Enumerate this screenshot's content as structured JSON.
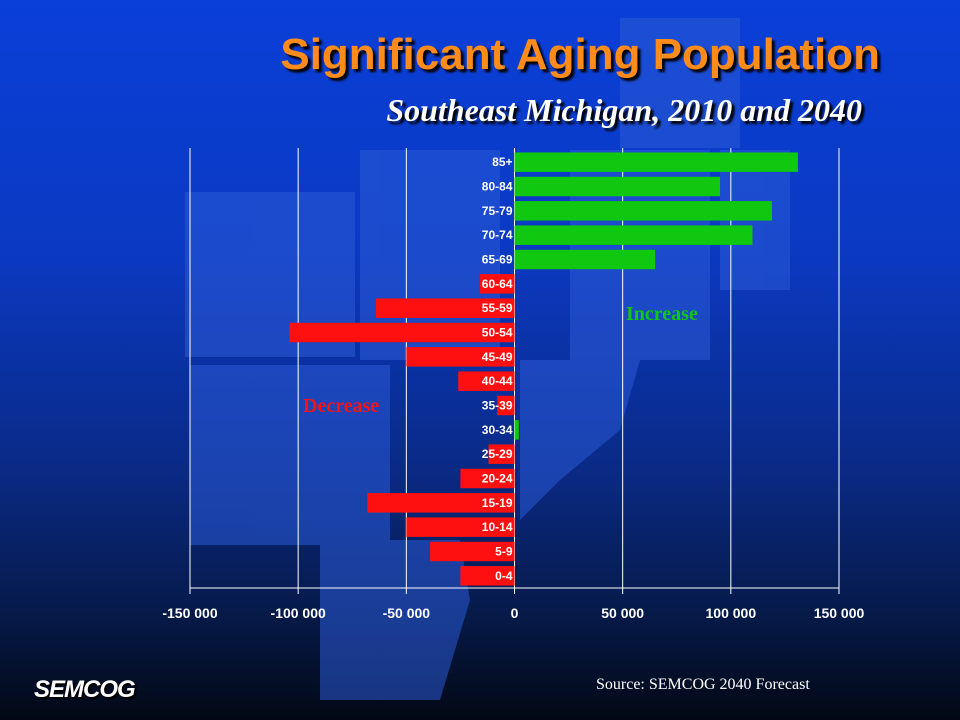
{
  "title": "Significant Aging Population",
  "subtitle": "Southeast Michigan, 2010 and 2040",
  "source": "Source: SEMCOG 2040 Forecast",
  "logo_text": "SEMCOG",
  "colors": {
    "increase": "#10c810",
    "decrease": "#ff1010",
    "title": "#ff8c1a"
  },
  "chart_data": {
    "type": "bar",
    "orientation": "horizontal",
    "categories": [
      "85+",
      "80-84",
      "75-79",
      "70-74",
      "65-69",
      "60-64",
      "55-59",
      "50-54",
      "45-49",
      "40-44",
      "35-39",
      "30-34",
      "25-29",
      "20-24",
      "15-19",
      "10-14",
      "5-9",
      "0-4"
    ],
    "values": [
      131000,
      95000,
      119000,
      110000,
      65000,
      -16000,
      -64000,
      -104000,
      -50000,
      -26000,
      -8000,
      2000,
      -12000,
      -25000,
      -68000,
      -50000,
      -39000,
      -25000
    ],
    "xlim": [
      -150000,
      150000
    ],
    "x_ticks": [
      -150000,
      -100000,
      -50000,
      0,
      50000,
      100000,
      150000
    ],
    "x_tick_labels": [
      "-150 000",
      "-100 000",
      "-50 000",
      "0",
      "50 000",
      "100 000",
      "150 000"
    ],
    "grid": true,
    "annotations": [
      {
        "text": "Increase",
        "color": "#10c810"
      },
      {
        "text": "Decrease",
        "color": "#ff1010"
      }
    ]
  }
}
